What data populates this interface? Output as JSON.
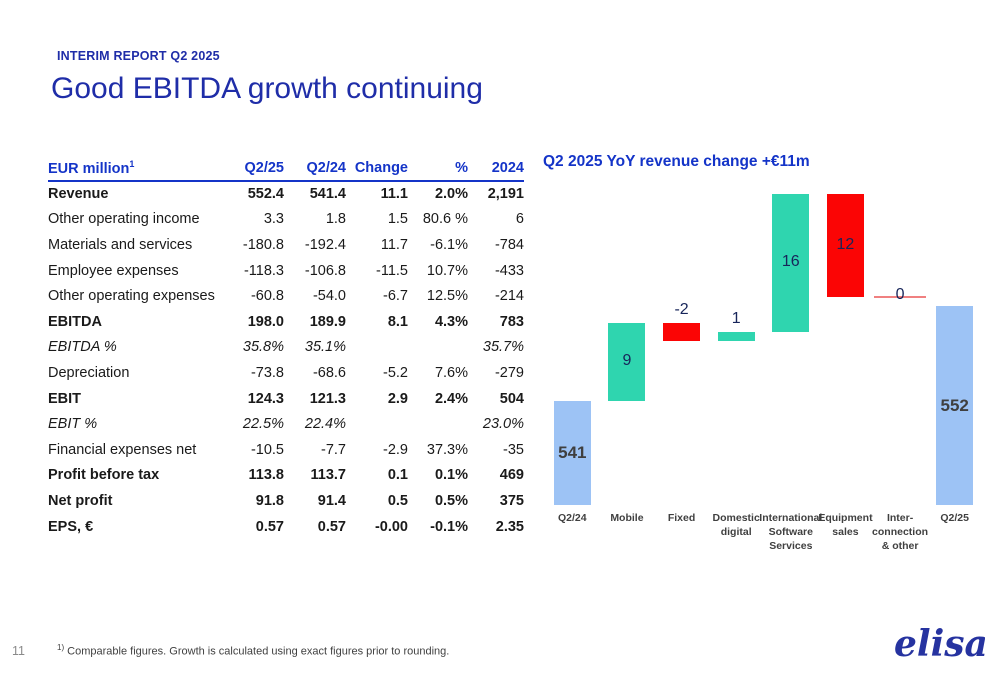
{
  "header": {
    "eyebrow": "INTERIM REPORT Q2 2025",
    "title": "Good EBITDA growth continuing"
  },
  "table": {
    "header": {
      "label_text": "EUR million",
      "label_sup": "1",
      "columns": [
        "Q2/25",
        "Q2/24",
        "Change",
        "%",
        "2024"
      ]
    },
    "rows": [
      {
        "label": "Revenue",
        "style": "bold",
        "values": [
          "552.4",
          "541.4",
          "11.1",
          "2.0%",
          "2,191"
        ]
      },
      {
        "label": "Other operating income",
        "style": "normal",
        "values": [
          "3.3",
          "1.8",
          "1.5",
          "80.6 %",
          "6"
        ]
      },
      {
        "label": "Materials and services",
        "style": "normal",
        "values": [
          "-180.8",
          "-192.4",
          "11.7",
          "-6.1%",
          "-784"
        ]
      },
      {
        "label": "Employee expenses",
        "style": "normal",
        "values": [
          "-118.3",
          "-106.8",
          "-11.5",
          "10.7%",
          "-433"
        ]
      },
      {
        "label": "Other operating expenses",
        "style": "normal",
        "values": [
          "-60.8",
          "-54.0",
          "-6.7",
          "12.5%",
          "-214"
        ]
      },
      {
        "label": "EBITDA",
        "style": "bold",
        "values": [
          "198.0",
          "189.9",
          "8.1",
          "4.3%",
          "783"
        ]
      },
      {
        "label": "EBITDA %",
        "style": "italic",
        "values": [
          "35.8%",
          "35.1%",
          "",
          "",
          "35.7%"
        ]
      },
      {
        "label": "Depreciation",
        "style": "normal",
        "values": [
          "-73.8",
          "-68.6",
          "-5.2",
          "7.6%",
          "-279"
        ]
      },
      {
        "label": "EBIT",
        "style": "bold",
        "values": [
          "124.3",
          "121.3",
          "2.9",
          "2.4%",
          "504"
        ]
      },
      {
        "label": "EBIT %",
        "style": "italic",
        "values": [
          "22.5%",
          "22.4%",
          "",
          "",
          "23.0%"
        ]
      },
      {
        "label": "Financial expenses net",
        "style": "normal",
        "values": [
          "-10.5",
          "-7.7",
          "-2.9",
          "37.3%",
          "-35"
        ]
      },
      {
        "label": "Profit before tax",
        "style": "bold",
        "values": [
          "113.8",
          "113.7",
          "0.1",
          "0.1%",
          "469"
        ]
      },
      {
        "label": "Net profit",
        "style": "bold",
        "values": [
          "91.8",
          "91.4",
          "0.5",
          "0.5%",
          "375"
        ]
      },
      {
        "label": "EPS, €",
        "style": "bold",
        "values": [
          "0.57",
          "0.57",
          "-0.00",
          "-0.1%",
          "2.35"
        ]
      }
    ]
  },
  "chart_data": {
    "type": "waterfall",
    "title": "Q2 2025 YoY revenue change +€11m",
    "categories": [
      "Q2/24",
      "Mobile",
      "Fixed",
      "Domestic digital",
      "International Software Services",
      "Equipment sales",
      "Inter-connection & other",
      "Q2/25"
    ],
    "category_lines": [
      [
        "Q2/24"
      ],
      [
        "Mobile"
      ],
      [
        "Fixed"
      ],
      [
        "Domestic",
        "digital"
      ],
      [
        "International",
        "Software",
        "Services"
      ],
      [
        "Equipment",
        "sales"
      ],
      [
        "Inter-",
        "connection",
        "& other"
      ],
      [
        "Q2/25"
      ]
    ],
    "values": [
      541,
      9,
      -2,
      1,
      16,
      -12,
      0,
      552
    ],
    "labels": [
      "541",
      "9",
      "-2",
      "1",
      "16",
      "12",
      "0",
      "552"
    ],
    "bar_types": [
      "total",
      "delta",
      "delta",
      "delta",
      "delta",
      "delta",
      "zero",
      "total"
    ],
    "label_pos": [
      "inside",
      "inside",
      "above",
      "above",
      "inside",
      "inside",
      "line",
      "inside"
    ],
    "axis_min": 529,
    "axis_max": 566,
    "grid": false,
    "legend": false,
    "colors": {
      "total": "#9DC3F5",
      "increase": "#2FD5AF",
      "decrease": "#FB0505",
      "zero_line": "#F08080",
      "delta_label": "#17255A",
      "total_label": "#3F3F3F"
    }
  },
  "footer": {
    "page_number": "11",
    "footnote_marker": "1)",
    "footnote_text": " Comparable figures. Growth is calculated using exact figures prior to rounding.",
    "logo_text": "elisa"
  }
}
